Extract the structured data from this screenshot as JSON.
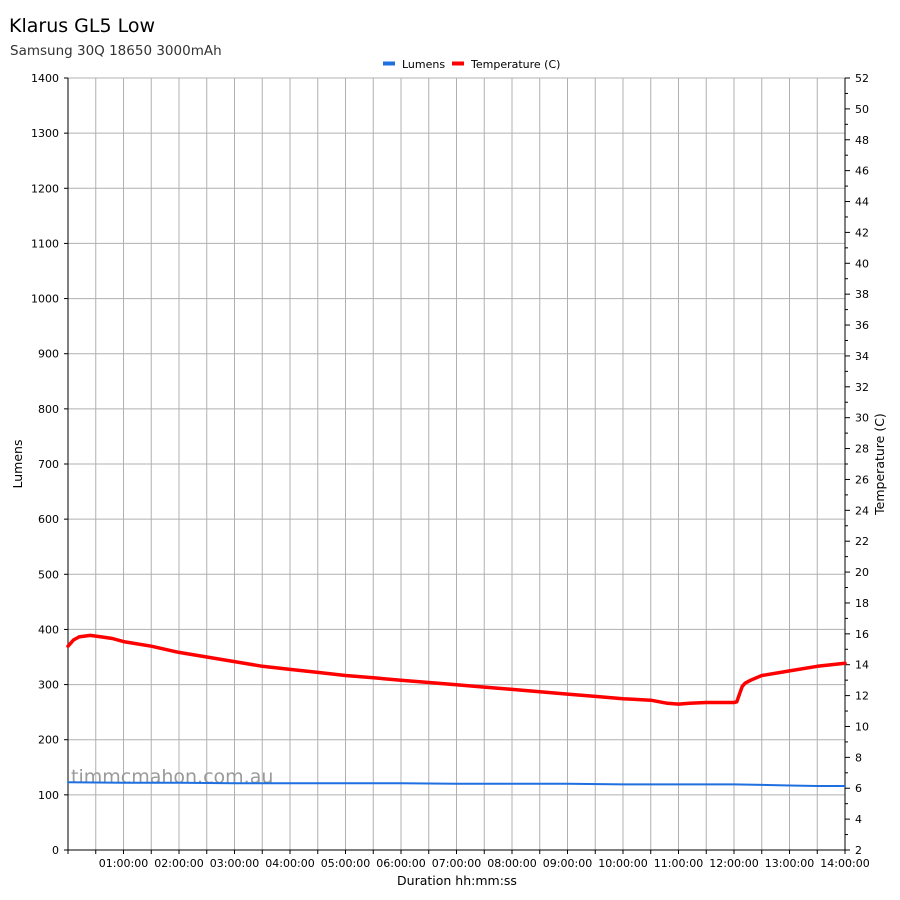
{
  "chart_data": {
    "type": "line",
    "title": "Klarus GL5 Low",
    "subtitle": "Samsung 30Q 18650 3000mAh",
    "xlabel": "Duration hh:mm:ss",
    "ylabel": "Lumens",
    "y2label": "Temperature (C)",
    "xlim_hours": [
      0,
      14
    ],
    "ylim": [
      0,
      1400
    ],
    "y2lim": [
      2,
      52
    ],
    "x_tick_labels": [
      "01:00:00",
      "02:00:00",
      "03:00:00",
      "04:00:00",
      "05:00:00",
      "06:00:00",
      "07:00:00",
      "08:00:00",
      "09:00:00",
      "10:00:00",
      "11:00:00",
      "12:00:00",
      "13:00:00",
      "14:00:00"
    ],
    "y_ticks": [
      0,
      100,
      200,
      300,
      400,
      500,
      600,
      700,
      800,
      900,
      1000,
      1100,
      1200,
      1300,
      1400
    ],
    "y2_ticks": [
      2,
      4,
      6,
      8,
      10,
      12,
      14,
      16,
      18,
      20,
      22,
      24,
      26,
      28,
      30,
      32,
      34,
      36,
      38,
      40,
      42,
      44,
      46,
      48,
      50,
      52
    ],
    "grid": true,
    "legend_position": "top-center",
    "watermark": "timmcmahon.com.au",
    "series": [
      {
        "name": "Lumens",
        "axis": "left",
        "color": "#1f6fe0",
        "x_hours": [
          0,
          1,
          2,
          3,
          4,
          5,
          6,
          7,
          8,
          9,
          10,
          11,
          12,
          12.5,
          13,
          13.5,
          14
        ],
        "values": [
          123,
          122,
          122,
          121,
          121,
          121,
          121,
          120,
          120,
          120,
          119,
          119,
          119,
          118,
          117,
          116,
          116
        ]
      },
      {
        "name": "Temperature (C)",
        "axis": "right",
        "color": "#ff0000",
        "x_hours": [
          0,
          0.1,
          0.2,
          0.4,
          0.6,
          0.8,
          1,
          1.5,
          2,
          2.5,
          3,
          3.5,
          4,
          4.5,
          5,
          5.5,
          6,
          6.5,
          7,
          7.5,
          8,
          8.5,
          9,
          9.5,
          10,
          10.5,
          10.8,
          11,
          11.2,
          11.5,
          12,
          12.05,
          12.1,
          12.15,
          12.2,
          12.3,
          12.5,
          13,
          13.5,
          14
        ],
        "values": [
          15.2,
          15.6,
          15.8,
          15.9,
          15.8,
          15.7,
          15.5,
          15.2,
          14.8,
          14.5,
          14.2,
          13.9,
          13.7,
          13.5,
          13.3,
          13.15,
          13.0,
          12.85,
          12.7,
          12.55,
          12.4,
          12.25,
          12.1,
          11.95,
          11.8,
          11.7,
          11.5,
          11.45,
          11.5,
          11.55,
          11.55,
          11.6,
          12.1,
          12.6,
          12.8,
          13.0,
          13.3,
          13.6,
          13.9,
          14.1
        ]
      }
    ]
  }
}
